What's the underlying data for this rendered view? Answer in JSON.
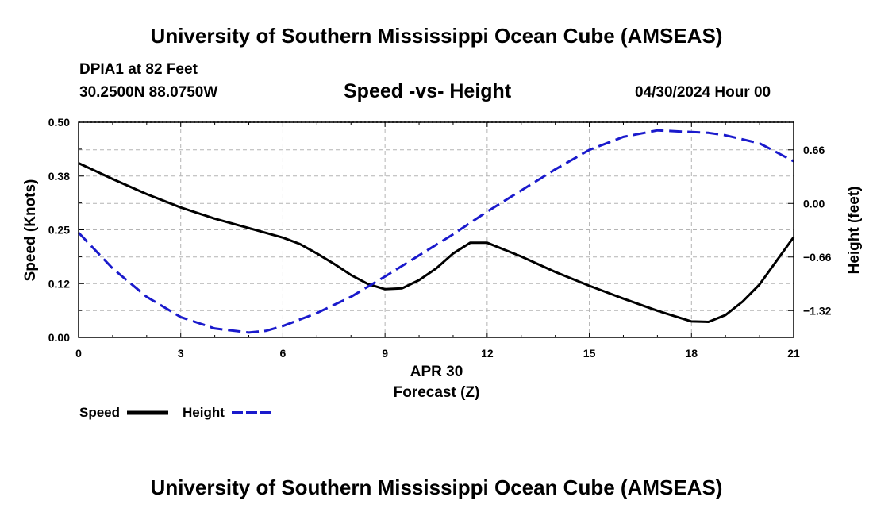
{
  "header": {
    "title": "University of Southern Mississippi Ocean Cube (AMSEAS)",
    "station": "DPIA1 at 82 Feet",
    "coords": "30.2500N  88.0750W",
    "date": "04/30/2024 Hour 00"
  },
  "footer": {
    "title": "University of Southern Mississippi Ocean Cube (AMSEAS)"
  },
  "chart_data": {
    "type": "line",
    "title": "Speed -vs- Height",
    "xlabel": "Forecast (Z)",
    "xlabel_date": "APR 30",
    "ylabel": "Speed (Knots)",
    "y2label": "Height (feet)",
    "xlim": [
      0,
      21
    ],
    "ylim": [
      0,
      0.5
    ],
    "y2lim": [
      -1.65,
      1.0
    ],
    "x_ticks": [
      0,
      3,
      6,
      9,
      12,
      15,
      18,
      21
    ],
    "x_tick_labels": [
      "0",
      "3",
      "6",
      "9",
      "12",
      "15",
      "18",
      "21"
    ],
    "y_ticks": [
      0,
      0.125,
      0.25,
      0.375,
      0.5
    ],
    "y_tick_labels": [
      "0.00",
      "0.12",
      "0.25",
      "0.38",
      "0.50"
    ],
    "y2_ticks": [
      0.66,
      0.0,
      -0.66,
      -1.32
    ],
    "y2_tick_labels": [
      "0.66",
      "0.00",
      "−0.66",
      "−1.32"
    ],
    "grid": true,
    "legend": "bottom-left",
    "colors": {
      "speed": "#000000",
      "height": "#1a1acc",
      "grid": "#b4b4b4"
    },
    "series": [
      {
        "name": "Speed",
        "axis": "left",
        "style": "solid",
        "x": [
          0,
          1,
          2,
          3,
          4,
          5,
          6,
          6.5,
          7,
          7.5,
          8,
          8.5,
          9,
          9.5,
          10,
          10.5,
          11,
          11.5,
          12,
          13,
          14,
          15,
          16,
          17,
          18,
          18.5,
          19,
          19.5,
          20,
          21
        ],
        "values": [
          0.405,
          0.368,
          0.333,
          0.302,
          0.276,
          0.254,
          0.232,
          0.217,
          0.195,
          0.171,
          0.145,
          0.124,
          0.112,
          0.114,
          0.133,
          0.16,
          0.195,
          0.22,
          0.22,
          0.188,
          0.152,
          0.12,
          0.09,
          0.062,
          0.037,
          0.036,
          0.052,
          0.083,
          0.123,
          0.233
        ]
      },
      {
        "name": "Height",
        "axis": "right",
        "style": "dashed",
        "x": [
          0,
          1,
          2,
          3,
          4,
          5,
          5.5,
          6,
          7,
          8,
          9,
          10,
          11,
          12,
          13,
          14,
          15,
          16,
          17,
          18,
          18.5,
          19,
          20,
          21
        ],
        "values": [
          -0.36,
          -0.8,
          -1.15,
          -1.4,
          -1.54,
          -1.59,
          -1.57,
          -1.51,
          -1.35,
          -1.15,
          -0.9,
          -0.64,
          -0.38,
          -0.1,
          0.16,
          0.42,
          0.66,
          0.82,
          0.9,
          0.88,
          0.87,
          0.84,
          0.74,
          0.52
        ]
      }
    ]
  }
}
